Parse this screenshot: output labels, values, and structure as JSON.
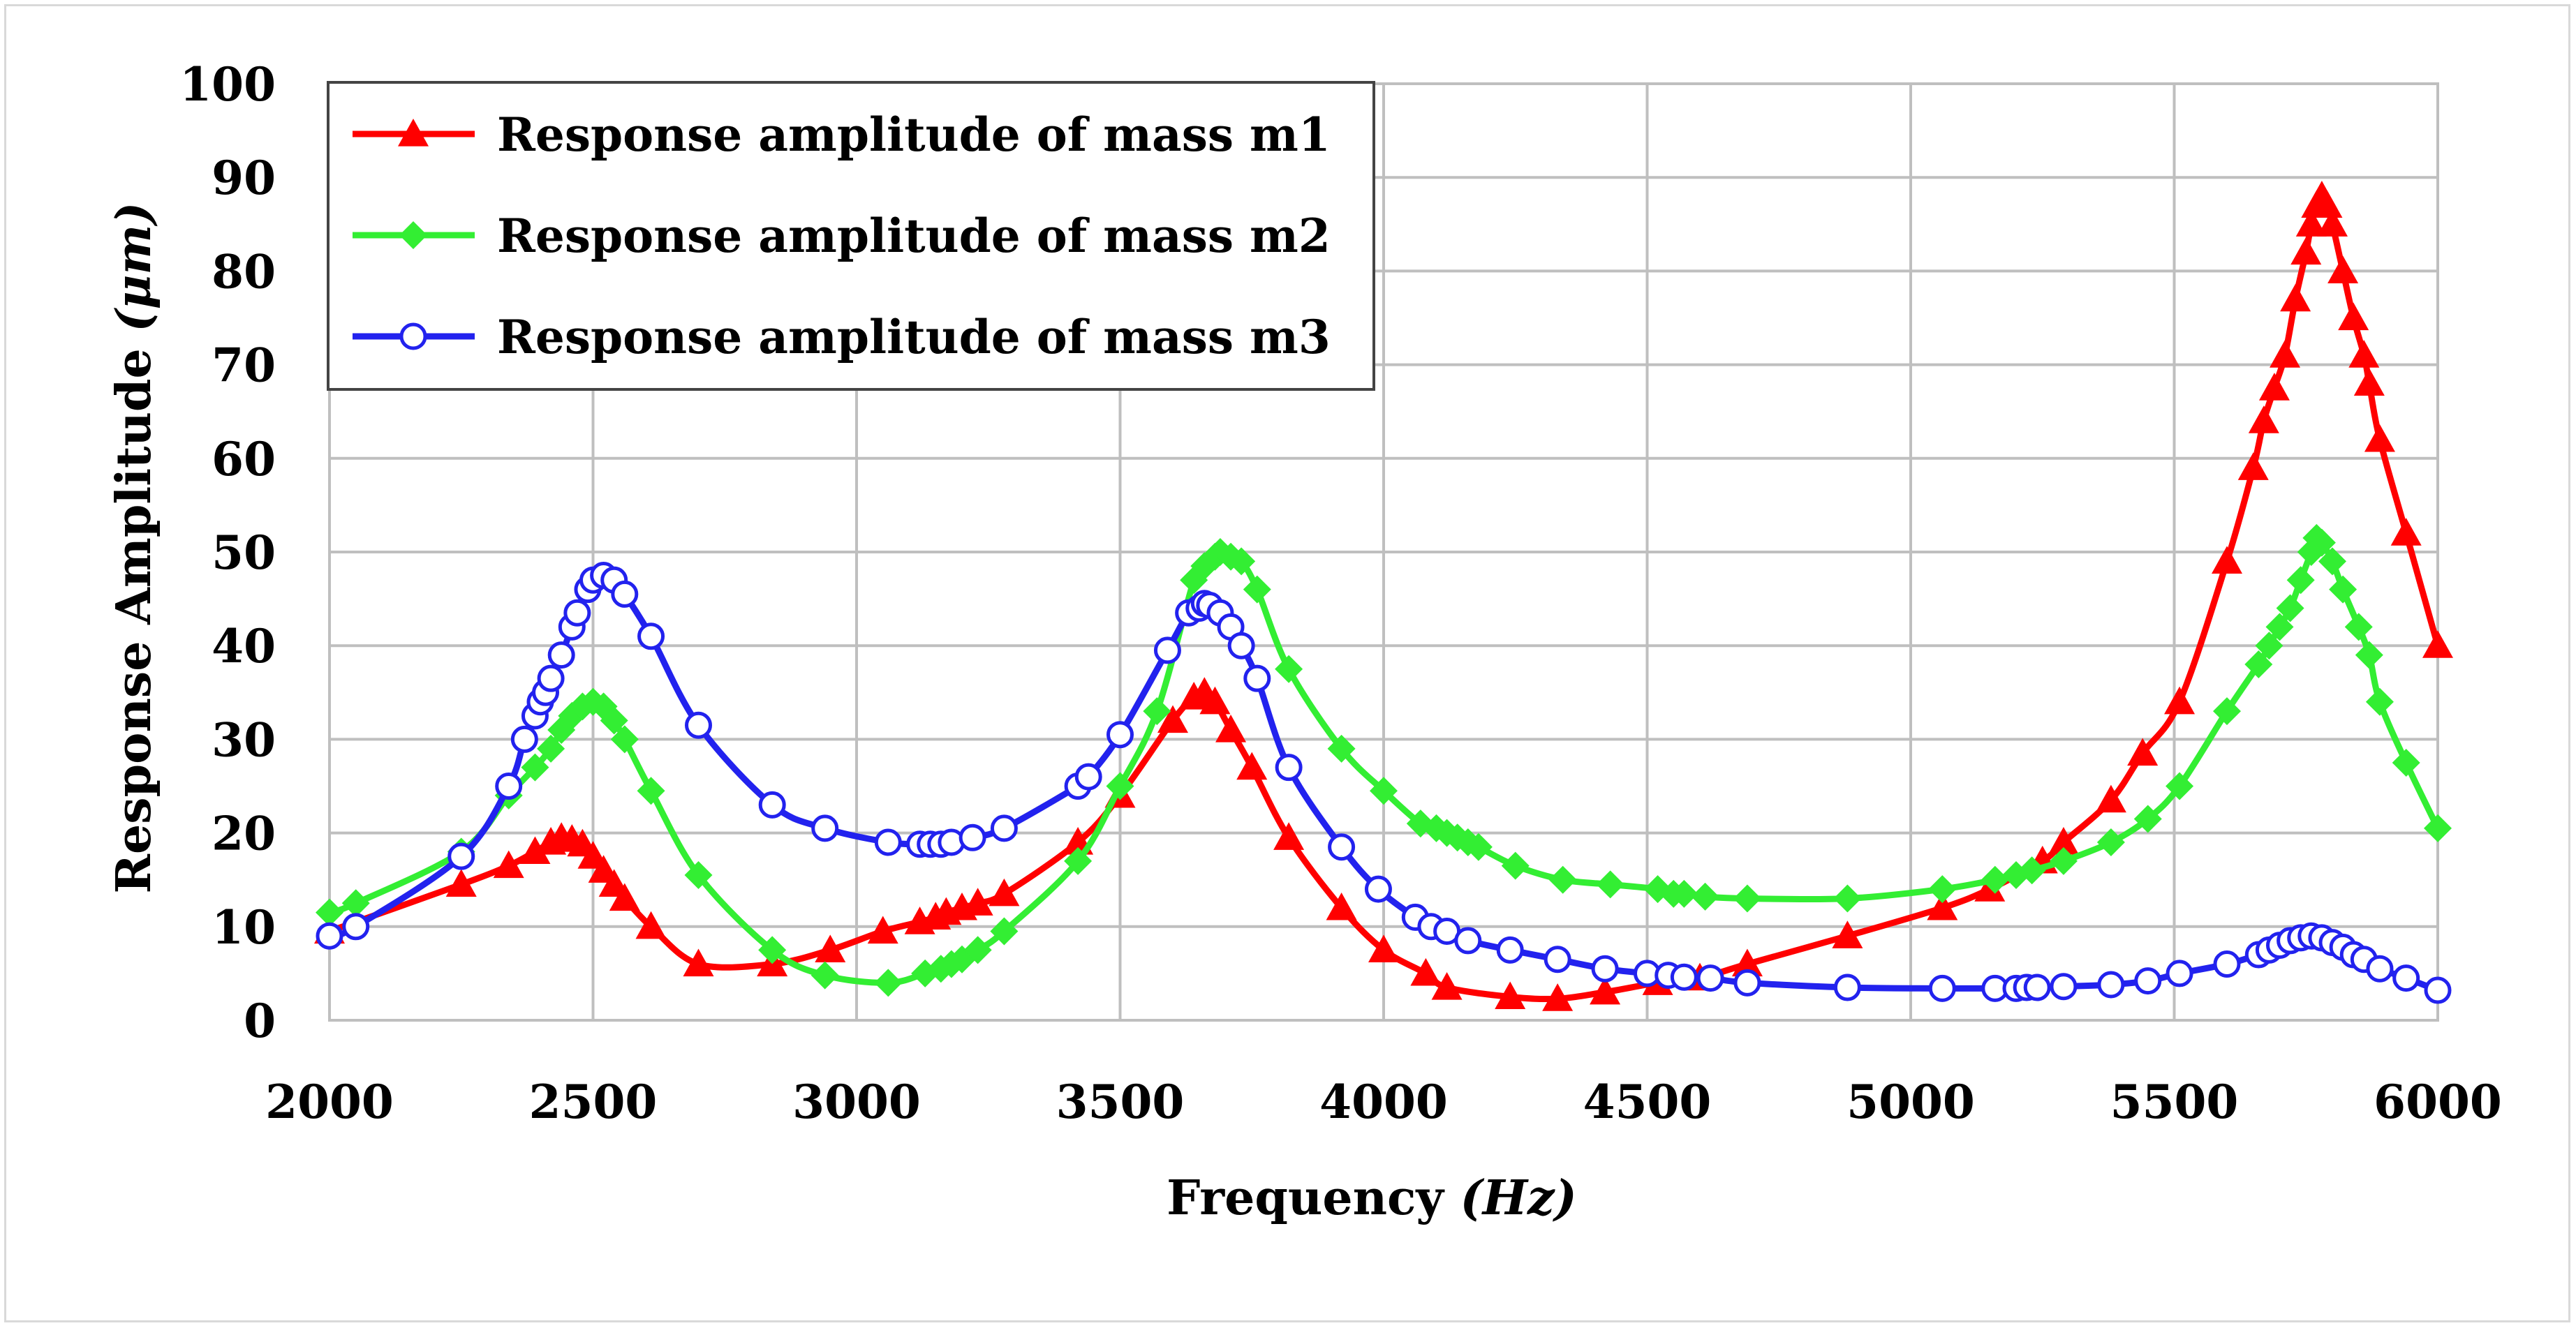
{
  "chart_data": {
    "type": "line",
    "xlabel_main": "Frequency ",
    "xlabel_unit": "(Hz)",
    "ylabel_main": "Response Amplitude ",
    "ylabel_unit": "(μm)",
    "xlim": [
      2000,
      6000
    ],
    "ylim": [
      0,
      100
    ],
    "x_ticks": [
      2000,
      2500,
      3000,
      3500,
      4000,
      4500,
      5000,
      5500,
      6000
    ],
    "y_ticks": [
      0,
      10,
      20,
      30,
      40,
      50,
      60,
      70,
      80,
      90,
      100
    ],
    "grid": true,
    "legend_position": "top-left",
    "series": [
      {
        "name": "Response amplitude of mass m1",
        "color": "#ff0000",
        "marker": "triangle",
        "points": [
          [
            2000,
            9.5
          ],
          [
            2250,
            14.5
          ],
          [
            2340,
            16.5
          ],
          [
            2390,
            18
          ],
          [
            2420,
            19
          ],
          [
            2440,
            19.5
          ],
          [
            2460,
            19.3
          ],
          [
            2480,
            18.8
          ],
          [
            2500,
            17.5
          ],
          [
            2520,
            16
          ],
          [
            2540,
            14.5
          ],
          [
            2560,
            13
          ],
          [
            2610,
            10
          ],
          [
            2700,
            6
          ],
          [
            2840,
            6
          ],
          [
            2950,
            7.5
          ],
          [
            3050,
            9.5
          ],
          [
            3120,
            10.5
          ],
          [
            3150,
            11
          ],
          [
            3170,
            11.5
          ],
          [
            3200,
            12
          ],
          [
            3230,
            12.5
          ],
          [
            3280,
            13.5
          ],
          [
            3420,
            19
          ],
          [
            3500,
            24
          ],
          [
            3600,
            32
          ],
          [
            3640,
            34.5
          ],
          [
            3660,
            35
          ],
          [
            3680,
            34
          ],
          [
            3710,
            31
          ],
          [
            3750,
            27
          ],
          [
            3820,
            19.5
          ],
          [
            3920,
            12
          ],
          [
            4000,
            7.5
          ],
          [
            4080,
            5
          ],
          [
            4120,
            3.5
          ],
          [
            4240,
            2.5
          ],
          [
            4330,
            2.3
          ],
          [
            4420,
            3
          ],
          [
            4520,
            4
          ],
          [
            4600,
            4.5
          ],
          [
            4690,
            6
          ],
          [
            4880,
            9
          ],
          [
            5060,
            12
          ],
          [
            5150,
            14
          ],
          [
            5250,
            17
          ],
          [
            5290,
            19
          ],
          [
            5380,
            23.5
          ],
          [
            5440,
            28.5
          ],
          [
            5510,
            34
          ],
          [
            5600,
            49
          ],
          [
            5650,
            59
          ],
          [
            5670,
            64
          ],
          [
            5690,
            67.5
          ],
          [
            5710,
            71
          ],
          [
            5730,
            77
          ],
          [
            5750,
            82
          ],
          [
            5760,
            85
          ],
          [
            5770,
            87
          ],
          [
            5780,
            88
          ],
          [
            5790,
            87
          ],
          [
            5800,
            85
          ],
          [
            5820,
            80
          ],
          [
            5840,
            75
          ],
          [
            5860,
            71
          ],
          [
            5870,
            68
          ],
          [
            5890,
            62
          ],
          [
            5940,
            52
          ],
          [
            6000,
            40
          ]
        ]
      },
      {
        "name": "Response amplitude of mass m2",
        "color": "#33ee33",
        "marker": "diamond",
        "points": [
          [
            2000,
            11.5
          ],
          [
            2050,
            12.5
          ],
          [
            2250,
            18
          ],
          [
            2340,
            24
          ],
          [
            2390,
            27
          ],
          [
            2420,
            29
          ],
          [
            2440,
            31
          ],
          [
            2460,
            32.5
          ],
          [
            2480,
            33.5
          ],
          [
            2500,
            34
          ],
          [
            2520,
            33.5
          ],
          [
            2540,
            32
          ],
          [
            2560,
            30
          ],
          [
            2610,
            24.5
          ],
          [
            2700,
            15.5
          ],
          [
            2840,
            7.5
          ],
          [
            2940,
            4.8
          ],
          [
            3060,
            4
          ],
          [
            3130,
            5
          ],
          [
            3160,
            5.5
          ],
          [
            3180,
            6
          ],
          [
            3200,
            6.5
          ],
          [
            3230,
            7.5
          ],
          [
            3280,
            9.5
          ],
          [
            3420,
            17
          ],
          [
            3500,
            25
          ],
          [
            3570,
            33
          ],
          [
            3640,
            47
          ],
          [
            3660,
            48.5
          ],
          [
            3680,
            49.5
          ],
          [
            3690,
            50
          ],
          [
            3710,
            49.5
          ],
          [
            3730,
            49
          ],
          [
            3760,
            46
          ],
          [
            3820,
            37.5
          ],
          [
            3920,
            29
          ],
          [
            4000,
            24.5
          ],
          [
            4070,
            21
          ],
          [
            4100,
            20.5
          ],
          [
            4120,
            20
          ],
          [
            4140,
            19.5
          ],
          [
            4160,
            19
          ],
          [
            4180,
            18.5
          ],
          [
            4250,
            16.5
          ],
          [
            4340,
            15
          ],
          [
            4430,
            14.5
          ],
          [
            4520,
            14
          ],
          [
            4550,
            13.5
          ],
          [
            4570,
            13.5
          ],
          [
            4610,
            13.2
          ],
          [
            4690,
            13
          ],
          [
            4880,
            13
          ],
          [
            5060,
            14
          ],
          [
            5160,
            15
          ],
          [
            5200,
            15.5
          ],
          [
            5230,
            16
          ],
          [
            5290,
            17
          ],
          [
            5380,
            19
          ],
          [
            5450,
            21.5
          ],
          [
            5510,
            25
          ],
          [
            5600,
            33
          ],
          [
            5660,
            38
          ],
          [
            5680,
            40
          ],
          [
            5700,
            42
          ],
          [
            5720,
            44
          ],
          [
            5740,
            47
          ],
          [
            5760,
            50
          ],
          [
            5770,
            51.5
          ],
          [
            5780,
            51
          ],
          [
            5800,
            49
          ],
          [
            5820,
            46
          ],
          [
            5850,
            42
          ],
          [
            5870,
            39
          ],
          [
            5890,
            34
          ],
          [
            5940,
            27.5
          ],
          [
            6000,
            20.5
          ]
        ]
      },
      {
        "name": "Response amplitude of mass m3",
        "color": "#2222ee",
        "marker": "circle",
        "points": [
          [
            2000,
            9
          ],
          [
            2050,
            10
          ],
          [
            2250,
            17.5
          ],
          [
            2340,
            25
          ],
          [
            2370,
            30
          ],
          [
            2390,
            32.5
          ],
          [
            2400,
            34
          ],
          [
            2410,
            35
          ],
          [
            2420,
            36.5
          ],
          [
            2440,
            39
          ],
          [
            2460,
            42
          ],
          [
            2470,
            43.5
          ],
          [
            2490,
            46
          ],
          [
            2500,
            47
          ],
          [
            2520,
            47.5
          ],
          [
            2540,
            47
          ],
          [
            2560,
            45.5
          ],
          [
            2610,
            41
          ],
          [
            2700,
            31.5
          ],
          [
            2840,
            23
          ],
          [
            2940,
            20.5
          ],
          [
            3060,
            19
          ],
          [
            3120,
            18.8
          ],
          [
            3140,
            18.8
          ],
          [
            3160,
            18.8
          ],
          [
            3180,
            19
          ],
          [
            3220,
            19.5
          ],
          [
            3280,
            20.5
          ],
          [
            3420,
            25
          ],
          [
            3440,
            26
          ],
          [
            3500,
            30.5
          ],
          [
            3590,
            39.5
          ],
          [
            3630,
            43.5
          ],
          [
            3650,
            44
          ],
          [
            3660,
            44.5
          ],
          [
            3670,
            44.3
          ],
          [
            3690,
            43.5
          ],
          [
            3710,
            42
          ],
          [
            3730,
            40
          ],
          [
            3760,
            36.5
          ],
          [
            3820,
            27
          ],
          [
            3920,
            18.5
          ],
          [
            3990,
            14
          ],
          [
            4060,
            11
          ],
          [
            4090,
            10
          ],
          [
            4120,
            9.5
          ],
          [
            4160,
            8.5
          ],
          [
            4240,
            7.5
          ],
          [
            4330,
            6.5
          ],
          [
            4420,
            5.5
          ],
          [
            4500,
            5
          ],
          [
            4540,
            4.8
          ],
          [
            4570,
            4.6
          ],
          [
            4620,
            4.5
          ],
          [
            4690,
            4
          ],
          [
            4880,
            3.5
          ],
          [
            5060,
            3.4
          ],
          [
            5160,
            3.4
          ],
          [
            5200,
            3.4
          ],
          [
            5220,
            3.5
          ],
          [
            5240,
            3.5
          ],
          [
            5290,
            3.6
          ],
          [
            5380,
            3.8
          ],
          [
            5450,
            4.2
          ],
          [
            5510,
            5
          ],
          [
            5600,
            6
          ],
          [
            5660,
            7
          ],
          [
            5680,
            7.5
          ],
          [
            5700,
            8
          ],
          [
            5720,
            8.5
          ],
          [
            5740,
            8.8
          ],
          [
            5760,
            9
          ],
          [
            5780,
            8.8
          ],
          [
            5800,
            8.3
          ],
          [
            5820,
            7.8
          ],
          [
            5840,
            7
          ],
          [
            5860,
            6.5
          ],
          [
            5890,
            5.5
          ],
          [
            5940,
            4.5
          ],
          [
            6000,
            3.2
          ]
        ]
      }
    ]
  }
}
